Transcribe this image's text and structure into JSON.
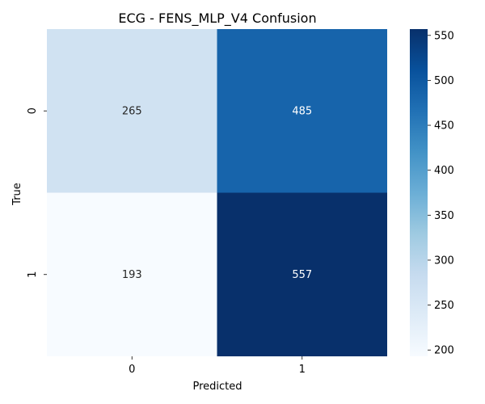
{
  "chart_data": {
    "type": "heatmap",
    "title": "ECG - FENS_MLP_V4 Confusion",
    "xlabel": "Predicted",
    "ylabel": "True",
    "x_categories": [
      "0",
      "1"
    ],
    "y_categories": [
      "0",
      "1"
    ],
    "matrix": [
      [
        265,
        485
      ],
      [
        193,
        557
      ]
    ],
    "colormap": "Blues",
    "colorbar": {
      "vmin": 193,
      "vmax": 557,
      "ticks": [
        200,
        250,
        300,
        350,
        400,
        450,
        500,
        550
      ]
    }
  }
}
